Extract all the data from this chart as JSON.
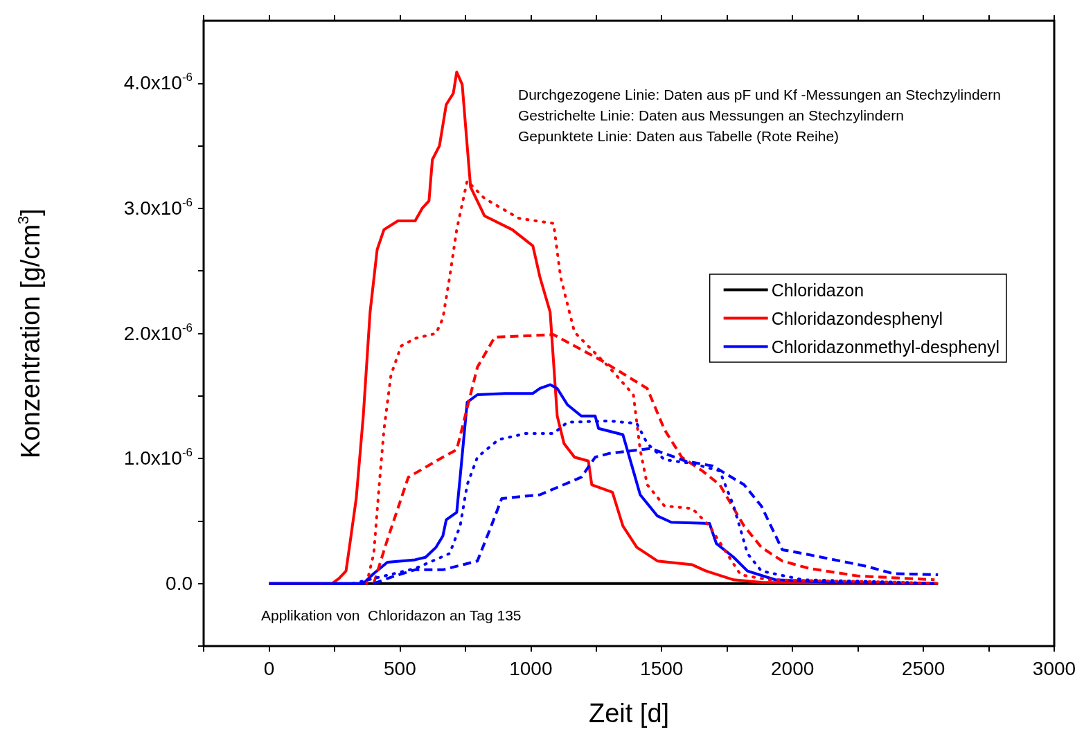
{
  "chart_data": {
    "type": "line",
    "xlabel": "Zeit [d]",
    "ylabel": "Konzentration [g/cm$^{3}$]",
    "xlim": [
      -250,
      3000
    ],
    "xticks": [
      {
        "value": -250,
        "label": null
      },
      0,
      {
        "value": 250,
        "label": null
      },
      500,
      {
        "value": 750,
        "label": null
      },
      1000,
      {
        "value": 1250,
        "label": null
      },
      1500,
      {
        "value": 1750,
        "label": null
      },
      2000,
      {
        "value": 2250,
        "label": null
      },
      2500,
      {
        "value": 2750,
        "label": null
      },
      3000
    ],
    "ylim": [
      -5e-07,
      4.5e-06
    ],
    "yticks": [
      {
        "value": -5e-07,
        "label": null
      },
      {
        "value": 0,
        "label": "0.0"
      },
      {
        "value": 5e-07,
        "label": null
      },
      {
        "value": 1e-06,
        "label": "1.0x10$^{-6}$"
      },
      {
        "value": 1.5e-06,
        "label": null
      },
      {
        "value": 2e-06,
        "label": "2.0x10$^{-6}$"
      },
      {
        "value": 2.5e-06,
        "label": null
      },
      {
        "value": 3e-06,
        "label": "3.0x10$^{-6}$"
      },
      {
        "value": 3.5e-06,
        "label": null
      },
      {
        "value": 4e-06,
        "label": "4.0x10$^{-6}$"
      }
    ],
    "grid": false,
    "legend": "right",
    "marker": "none",
    "annotations": [
      "Durchgezogene Linie: Daten aus pF und Kf -Messungen an Stechzylindern",
      "Gestrichelte Linie: Daten aus Messungen an Stechzylindern",
      "Gepunktete Linie: Daten aus Tabelle (Rote Reihe)",
      "Applikation von  Chloridazon an Tag 135"
    ],
    "series": [
      {
        "name": "Chloridazon",
        "color": "#000000",
        "line_style": "solid",
        "x": [
          0,
          2556
        ],
        "values": [
          0,
          0
        ]
      },
      {
        "name": "Chloridazondesphenyl",
        "color": "#ff0000",
        "line_style": "solid",
        "x": [
          0,
          241,
          267,
          294,
          307,
          333,
          360,
          386,
          413,
          439,
          492,
          558,
          585,
          611,
          624,
          651,
          677,
          704,
          717,
          738,
          757,
          770,
          823,
          929,
          1008,
          1035,
          1074,
          1101,
          1127,
          1167,
          1220,
          1233,
          1312,
          1352,
          1405,
          1484,
          1617,
          1670,
          1775,
          1881,
          2543
        ],
        "values": [
          0,
          0,
          4e-08,
          1e-07,
          2.9e-07,
          6.8e-07,
          1.34e-06,
          2.17e-06,
          2.67e-06,
          2.83e-06,
          2.9e-06,
          2.9e-06,
          3e-06,
          3.06e-06,
          3.39e-06,
          3.5e-06,
          3.83e-06,
          3.92e-06,
          4.09e-06,
          3.99e-06,
          3.5e-06,
          3.17e-06,
          2.94e-06,
          2.83e-06,
          2.7e-06,
          2.45e-06,
          2.17e-06,
          1.34e-06,
          1.12e-06,
          1.01e-06,
          9.8e-07,
          7.9e-07,
          7.3e-07,
          4.6e-07,
          2.9e-07,
          1.8e-07,
          1.5e-07,
          1e-07,
          3e-08,
          1e-08,
          0
        ]
      },
      {
        "name": "Chloridazonmethyl-desphenyl",
        "color": "#0000ff",
        "line_style": "solid",
        "x": [
          0,
          360,
          400,
          452,
          558,
          598,
          638,
          664,
          677,
          717,
          730,
          757,
          796,
          902,
          1008,
          1035,
          1074,
          1101,
          1140,
          1193,
          1246,
          1259,
          1352,
          1392,
          1418,
          1484,
          1537,
          1683,
          1709,
          1775,
          1828,
          1934,
          2146,
          2543
        ],
        "values": [
          0,
          0,
          8e-08,
          1.7e-07,
          1.9e-07,
          2.1e-07,
          2.9e-07,
          3.8e-07,
          5.1e-07,
          5.7e-07,
          8.5e-07,
          1.45e-06,
          1.51e-06,
          1.52e-06,
          1.52e-06,
          1.56e-06,
          1.59e-06,
          1.56e-06,
          1.43e-06,
          1.34e-06,
          1.34e-06,
          1.24e-06,
          1.19e-06,
          9e-07,
          7.1e-07,
          5.4e-07,
          4.9e-07,
          4.8e-07,
          3.2e-07,
          2.1e-07,
          1e-07,
          3e-08,
          1e-08,
          0
        ]
      },
      {
        "color": "#ff0000",
        "line_style": "dotted",
        "x": [
          373,
          400,
          421,
          439,
          466,
          505,
          558,
          638,
          664,
          690,
          717,
          757,
          823,
          955,
          1087,
          1114,
          1167,
          1299,
          1392,
          1418,
          1445,
          1511,
          1617,
          1683,
          1749,
          1802,
          1908,
          2410,
          2556
        ],
        "values": [
          0,
          2.4e-07,
          7.9e-07,
          1.23e-06,
          1.67e-06,
          1.9e-06,
          1.96e-06,
          2e-06,
          2.12e-06,
          2.45e-06,
          2.83e-06,
          3.22e-06,
          3.08e-06,
          2.92e-06,
          2.88e-06,
          2.45e-06,
          2.01e-06,
          1.73e-06,
          1.51e-06,
          1.07e-06,
          7.9e-07,
          6.2e-07,
          6e-07,
          4.6e-07,
          2.4e-07,
          7e-08,
          3e-08,
          1e-08,
          0
        ]
      },
      {
        "color": "#ff0000",
        "line_style": "dashed",
        "x": [
          400,
          452,
          532,
          664,
          717,
          796,
          862,
          1087,
          1273,
          1445,
          1511,
          1577,
          1656,
          1722,
          1815,
          1881,
          1961,
          2066,
          2252,
          2543
        ],
        "values": [
          0,
          3.5e-07,
          8.5e-07,
          1.01e-06,
          1.07e-06,
          1.73e-06,
          1.97e-06,
          1.99e-06,
          1.78e-06,
          1.56e-06,
          1.23e-06,
          1.01e-06,
          9e-07,
          7.9e-07,
          4.6e-07,
          2.9e-07,
          1.8e-07,
          1.2e-07,
          6e-08,
          3e-08
        ]
      },
      {
        "color": "#0000ff",
        "line_style": "dotted",
        "x": [
          320,
          400,
          558,
          690,
          730,
          757,
          796,
          876,
          981,
          1087,
          1140,
          1299,
          1405,
          1445,
          1511,
          1617,
          1722,
          1775,
          1828,
          1881,
          2040,
          2410,
          2556
        ],
        "values": [
          0,
          4e-08,
          1.2e-07,
          2.4e-07,
          4.6e-07,
          7.9e-07,
          1.01e-06,
          1.15e-06,
          1.2e-06,
          1.2e-06,
          1.29e-06,
          1.3e-06,
          1.28e-06,
          1.12e-06,
          9.9e-07,
          9.6e-07,
          9e-07,
          6.2e-07,
          2.4e-07,
          1e-07,
          3e-08,
          1e-08,
          0
        ]
      },
      {
        "color": "#0000ff",
        "line_style": "dashed",
        "x": [
          400,
          479,
          558,
          664,
          796,
          849,
          889,
          1035,
          1193,
          1246,
          1299,
          1458,
          1590,
          1696,
          1815,
          1881,
          1961,
          2040,
          2278,
          2384,
          2556
        ],
        "values": [
          0,
          6e-08,
          1.1e-07,
          1.1e-07,
          1.8e-07,
          4.6e-07,
          6.8e-07,
          7.1e-07,
          8.5e-07,
          1.01e-06,
          1.04e-06,
          1.08e-06,
          9.8e-07,
          9.4e-07,
          7.9e-07,
          6.2e-07,
          2.7e-07,
          2.4e-07,
          1.4e-07,
          8e-08,
          7e-08
        ]
      }
    ]
  }
}
